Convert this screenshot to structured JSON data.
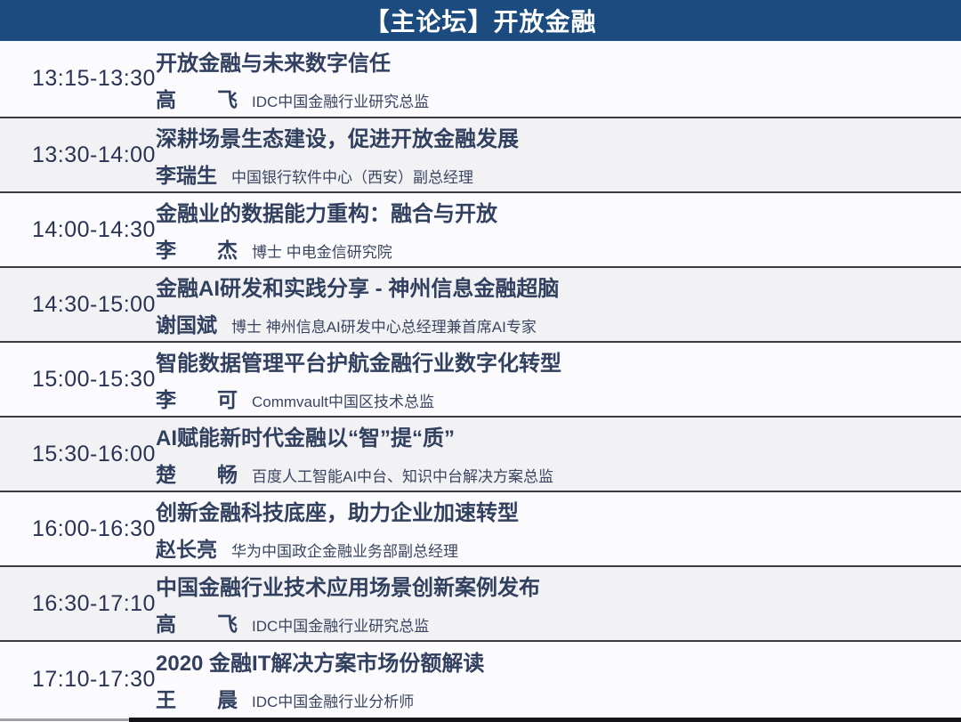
{
  "header": {
    "title": "【主论坛】开放金融"
  },
  "sessions": [
    {
      "time": "13:15-13:30",
      "title": "开放金融与未来数字信任",
      "speaker": "高　　飞",
      "affiliation": "IDC中国金融行业研究总监"
    },
    {
      "time": "13:30-14:00",
      "title": "深耕场景生态建设，促进开放金融发展",
      "speaker": "李瑞生",
      "affiliation": "中国银行软件中心（西安）副总经理"
    },
    {
      "time": "14:00-14:30",
      "title": "金融业的数据能力重构：融合与开放",
      "speaker": "李　　杰",
      "affiliation": "博士 中电金信研究院"
    },
    {
      "time": "14:30-15:00",
      "title": "金融AI研发和实践分享 - 神州信息金融超脑",
      "speaker": "谢国斌",
      "affiliation": "博士 神州信息AI研发中心总经理兼首席AI专家"
    },
    {
      "time": "15:00-15:30",
      "title": "智能数据管理平台护航金融行业数字化转型",
      "speaker": "李　　可",
      "affiliation": "Commvault中国区技术总监"
    },
    {
      "time": "15:30-16:00",
      "title": "AI赋能新时代金融以“智”提“质”",
      "speaker": "楚　　畅",
      "affiliation": "百度人工智能AI中台、知识中台解决方案总监"
    },
    {
      "time": "16:00-16:30",
      "title": "创新金融科技底座，助力企业加速转型",
      "speaker": "赵长亮",
      "affiliation": "华为中国政企金融业务部副总经理"
    },
    {
      "time": "16:30-17:10",
      "title": "中国金融行业技术应用场景创新案例发布",
      "speaker": "高　　飞",
      "affiliation": "IDC中国金融行业研究总监"
    },
    {
      "time": "17:10-17:30",
      "title": "2020 金融IT解决方案市场份额解读",
      "speaker": "王　　晨",
      "affiliation": "IDC中国金融行业分析师"
    }
  ],
  "colors": {
    "header_bg": "#1b4b7f",
    "header_fg": "#ffffff",
    "row_base": "#fbfafd",
    "row_alt": "#f2f2f4",
    "divider": "#3c3c3e",
    "title_fg": "#32405f",
    "time_fg": "#2a3352",
    "aff_fg": "#3a4560"
  }
}
